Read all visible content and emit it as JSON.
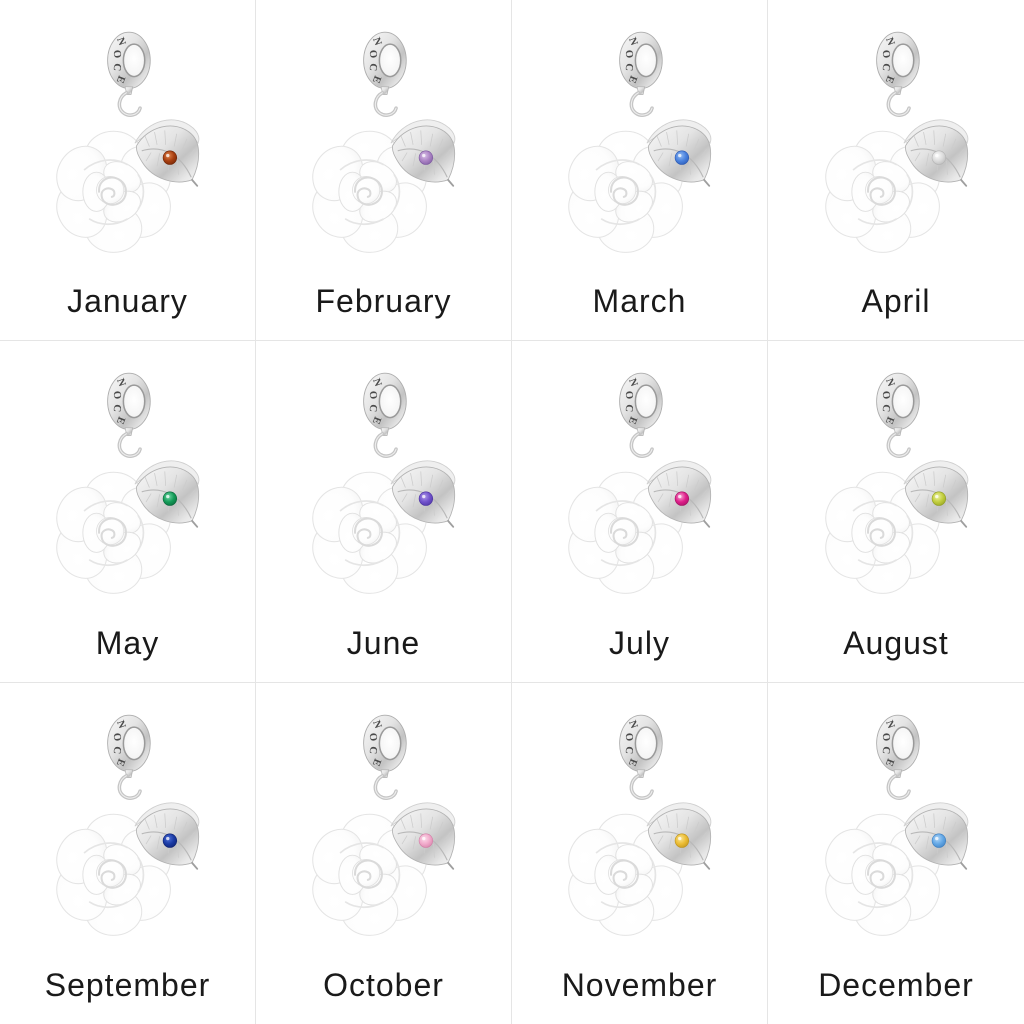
{
  "page": {
    "background": "#ffffff",
    "grid_line_color": "#e5e5e5",
    "label_color": "#1a1a1a",
    "columns": 4,
    "rows": 3
  },
  "charm": {
    "bail_text": "NOCE",
    "metal_light": "#f7f7f7",
    "metal_mid": "#d9d9d9",
    "metal_dark": "#c0c0c0",
    "pearl_light": "#ffffff",
    "pearl_shade": "#e9e9e9"
  },
  "months": [
    {
      "label": "January",
      "gem": {
        "name": "dark-red",
        "light": "#e0854e",
        "main": "#a83f10",
        "dark": "#6e2405"
      }
    },
    {
      "label": "February",
      "gem": {
        "name": "light-purple",
        "light": "#d9c0e8",
        "main": "#ab83c4",
        "dark": "#7c58a0"
      }
    },
    {
      "label": "March",
      "gem": {
        "name": "blue",
        "light": "#93bbf2",
        "main": "#4a82de",
        "dark": "#2857b2"
      }
    },
    {
      "label": "April",
      "gem": {
        "name": "clear-white",
        "light": "#fbfbfb",
        "main": "#dcdcdc",
        "dark": "#b4b4b4"
      }
    },
    {
      "label": "May",
      "gem": {
        "name": "green",
        "light": "#74d6a8",
        "main": "#149c58",
        "dark": "#09663a"
      }
    },
    {
      "label": "June",
      "gem": {
        "name": "violet",
        "light": "#ad98e8",
        "main": "#7152cc",
        "dark": "#4a32a0"
      }
    },
    {
      "label": "July",
      "gem": {
        "name": "magenta-pink",
        "light": "#f6a4d2",
        "main": "#df1f8a",
        "dark": "#a30f63"
      }
    },
    {
      "label": "August",
      "gem": {
        "name": "yellow-green",
        "light": "#ecf2a2",
        "main": "#c2ce3e",
        "dark": "#909e20"
      }
    },
    {
      "label": "September",
      "gem": {
        "name": "dark-blue",
        "light": "#4f70d8",
        "main": "#1a3aa4",
        "dark": "#0d2170"
      }
    },
    {
      "label": "October",
      "gem": {
        "name": "light-pink",
        "light": "#fbdcea",
        "main": "#f1aacb",
        "dark": "#d27ea6"
      }
    },
    {
      "label": "November",
      "gem": {
        "name": "yellow",
        "light": "#f9e492",
        "main": "#ecbd35",
        "dark": "#bd921b"
      }
    },
    {
      "label": "December",
      "gem": {
        "name": "light-blue",
        "light": "#b0d5f6",
        "main": "#64a8e6",
        "dark": "#3c7ec0"
      }
    }
  ]
}
